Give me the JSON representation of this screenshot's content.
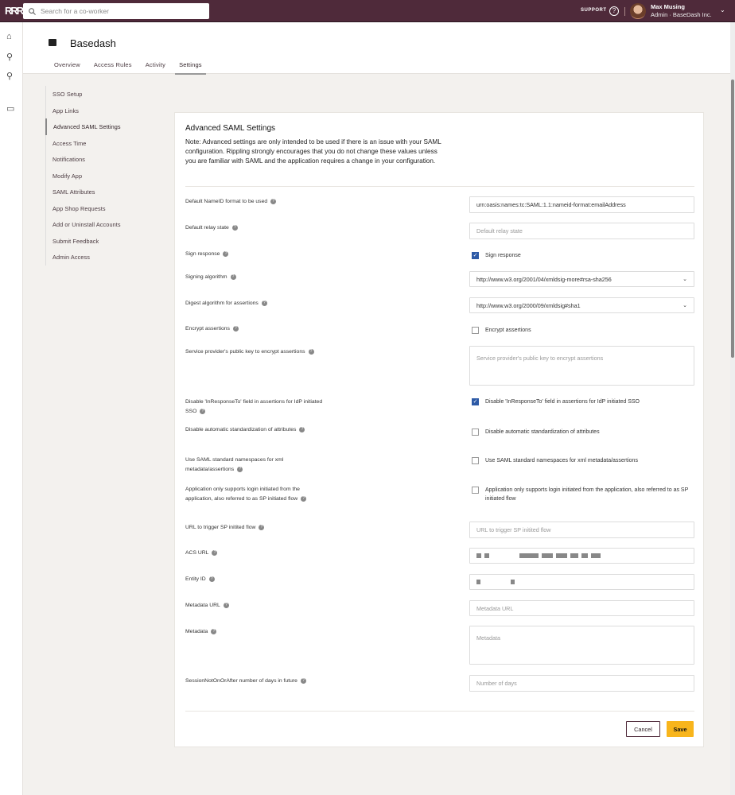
{
  "topbar": {
    "logo": "RRR",
    "search_placeholder": "Search for a co-worker",
    "support": "SUPPORT",
    "help_icon": "?",
    "user_name": "Max Musing",
    "user_role": "Admin · BaseDash Inc.",
    "chevron": "⌄"
  },
  "app": {
    "title": "Basedash",
    "tabs": [
      {
        "label": "Overview"
      },
      {
        "label": "Access Rules"
      },
      {
        "label": "Activity"
      },
      {
        "label": "Settings",
        "active": true
      }
    ]
  },
  "sidenav": [
    {
      "label": "SSO Setup"
    },
    {
      "label": "App Links"
    },
    {
      "label": "Advanced SAML Settings",
      "active": true
    },
    {
      "label": "Access Time"
    },
    {
      "label": "Notifications"
    },
    {
      "label": "Modify App"
    },
    {
      "label": "SAML Attributes"
    },
    {
      "label": "App Shop Requests"
    },
    {
      "label": "Add or Uninstall Accounts"
    },
    {
      "label": "Submit Feedback"
    },
    {
      "label": "Admin Access"
    }
  ],
  "card": {
    "title": "Advanced SAML Settings",
    "note": "Note: Advanced settings are only intended to be used if there is an issue with your SAML configuration. Rippling strongly encourages that you do not change these values unless you are familiar with SAML and the application requires a change in your configuration.",
    "fields": [
      {
        "label": "Default NameID format to be used",
        "type": "input",
        "value": "urn:oasis:names:tc:SAML:1.1:nameid-format:emailAddress"
      },
      {
        "label": "Default relay state",
        "type": "input",
        "placeholder": "Default relay state"
      },
      {
        "label": "Sign response",
        "type": "checkbox",
        "checked": true,
        "text": "Sign response"
      },
      {
        "label": "Signing algorithm",
        "type": "select",
        "value": "http://www.w3.org/2001/04/xmldsig-more#rsa-sha256"
      },
      {
        "label": "Digest algorithm for assertions",
        "type": "select",
        "value": "http://www.w3.org/2000/09/xmldsig#sha1"
      },
      {
        "label": "Encrypt assertions",
        "type": "checkbox",
        "checked": false,
        "text": "Encrypt assertions"
      },
      {
        "label": "Service provider's public key to encrypt assertions",
        "type": "textarea",
        "placeholder": "Service provider's public key to encrypt assertions"
      },
      {
        "label": "Disable 'InResponseTo' field in assertions for IdP initiated SSO",
        "type": "checkbox",
        "checked": true,
        "text": "Disable 'InResponseTo' field in assertions for IdP initiated SSO"
      },
      {
        "label": "Disable automatic standardization of attributes",
        "type": "checkbox",
        "checked": false,
        "text": "Disable automatic standardization of attributes"
      },
      {
        "label": "Use SAML standard namespaces for xml metadata/assertions",
        "type": "checkbox",
        "checked": false,
        "text": "Use SAML standard namespaces for xml metadata/assertions"
      },
      {
        "label": "Application only supports login initiated from the application, also referred to as SP initiated flow",
        "type": "checkbox",
        "checked": false,
        "text": "Application only supports login initiated from the application, also referred to as SP initiated flow"
      },
      {
        "label": "URL to trigger SP initited flow",
        "type": "input",
        "placeholder": "URL to trigger SP initited flow"
      },
      {
        "label": "ACS URL",
        "type": "redacted"
      },
      {
        "label": "Entity ID",
        "type": "redacted"
      },
      {
        "label": "Metadata URL",
        "type": "input",
        "placeholder": "Metadata URL"
      },
      {
        "label": "Metadata",
        "type": "textarea",
        "placeholder": "Metadata"
      },
      {
        "label": "SessionNotOnOrAfter number of days in future",
        "type": "input",
        "placeholder": "Number of days"
      }
    ],
    "cancel": "Cancel",
    "save": "Save"
  },
  "colors": {
    "topbar": "#4f2a3a",
    "save": "#f8b51c",
    "checkbox": "#2d5aa6"
  }
}
